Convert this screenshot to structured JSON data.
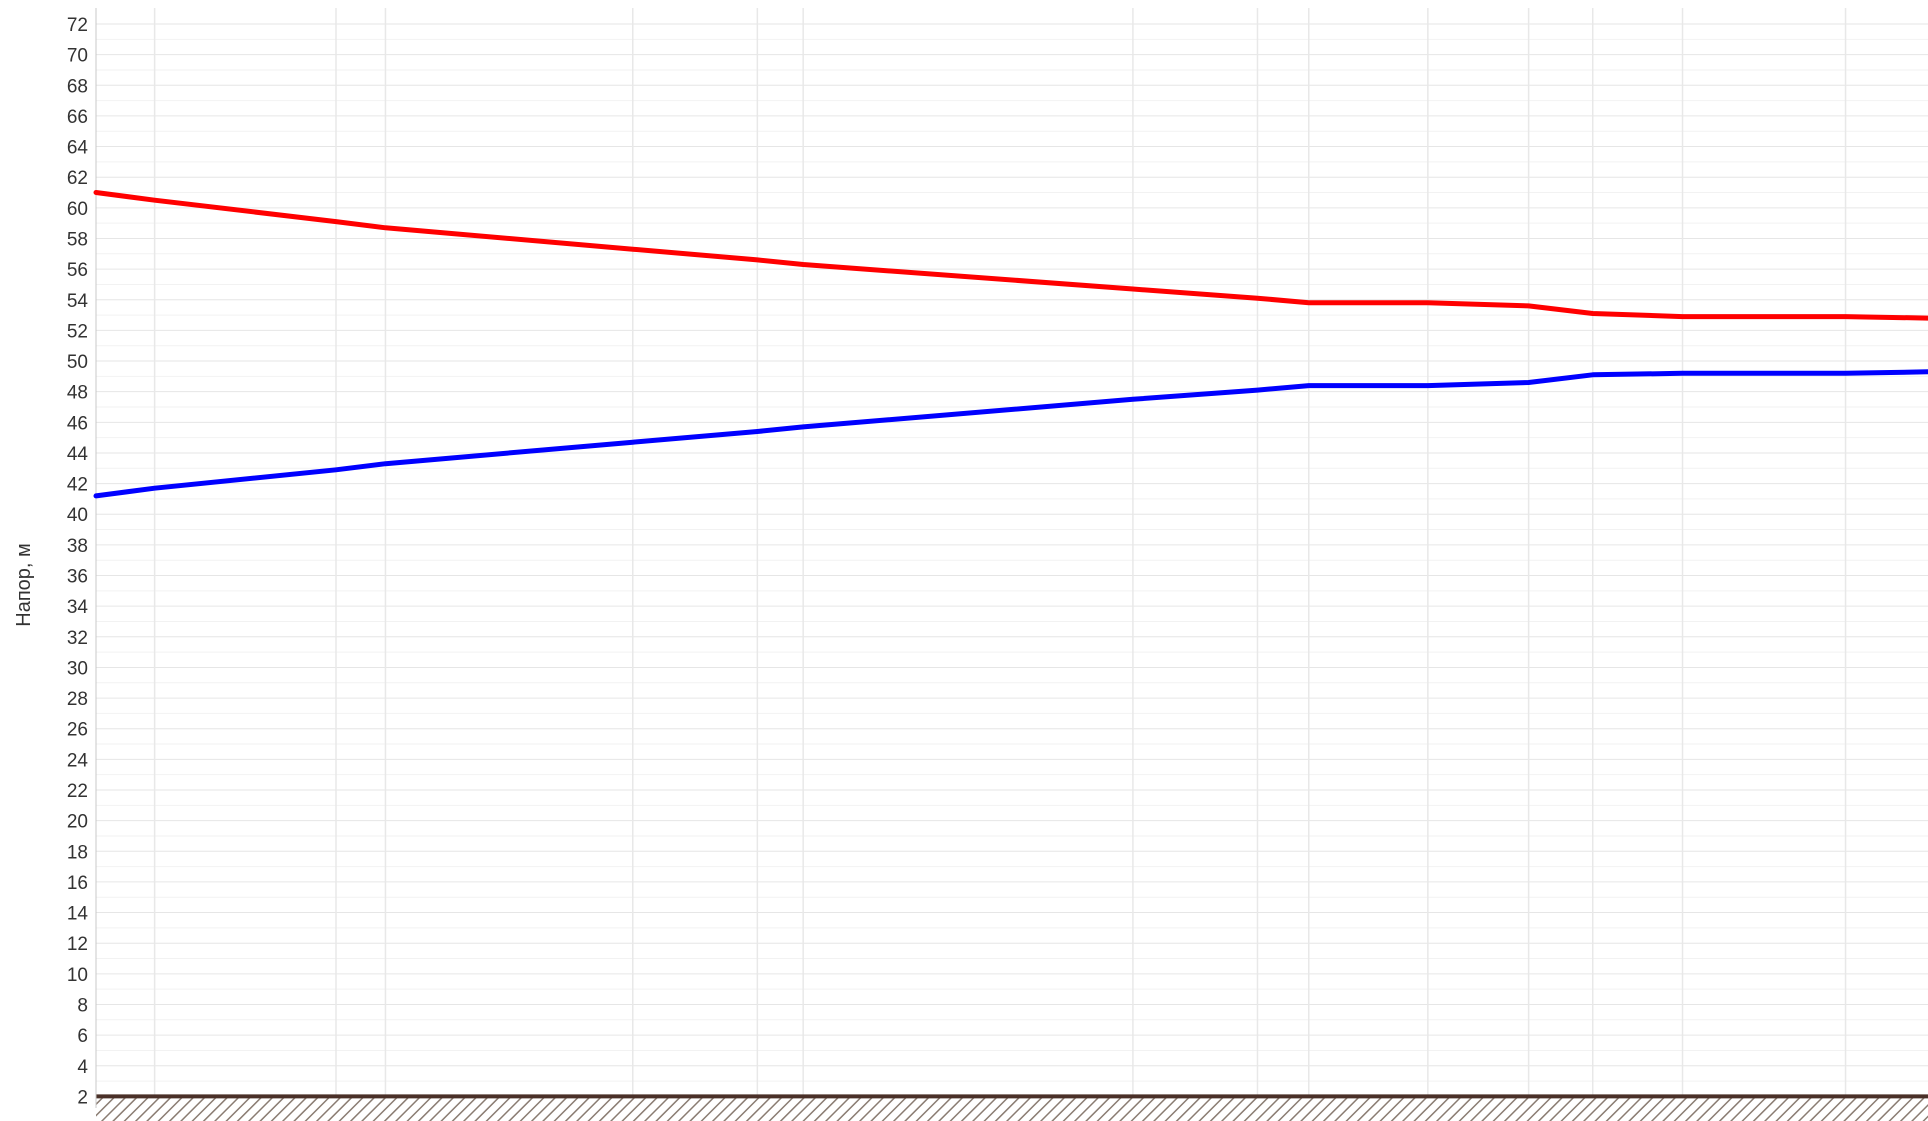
{
  "chart_data": {
    "type": "line",
    "title": "",
    "xlabel": "",
    "ylabel": "Напор, м",
    "ylim": [
      0,
      72
    ],
    "y_ticks": [
      2,
      4,
      6,
      8,
      10,
      12,
      14,
      16,
      18,
      20,
      22,
      24,
      26,
      28,
      30,
      32,
      34,
      36,
      38,
      40,
      42,
      44,
      46,
      48,
      50,
      52,
      54,
      56,
      58,
      60,
      62,
      64,
      66,
      68,
      70,
      72
    ],
    "xlim": [
      0,
      100
    ],
    "grid": true,
    "ground_level": 2,
    "series": [
      {
        "color": "#ff0000",
        "x": [
          0,
          3.2,
          13.1,
          15.8,
          29.3,
          36.1,
          38.6,
          56.6,
          63.4,
          66.2,
          72.7,
          78.2,
          81.7,
          86.6,
          95.5,
          100
        ],
        "y": [
          61.0,
          60.5,
          59.1,
          58.7,
          57.3,
          56.6,
          56.3,
          54.7,
          54.1,
          53.8,
          53.8,
          53.6,
          53.1,
          52.9,
          52.9,
          52.8
        ]
      },
      {
        "color": "#0000ff",
        "x": [
          0,
          3.2,
          13.1,
          15.8,
          29.3,
          36.1,
          38.6,
          56.6,
          63.4,
          66.2,
          72.7,
          78.2,
          81.7,
          86.6,
          95.5,
          100
        ],
        "y": [
          41.2,
          41.7,
          42.9,
          43.3,
          44.7,
          45.4,
          45.7,
          47.5,
          48.1,
          48.4,
          48.4,
          48.6,
          49.1,
          49.2,
          49.2,
          49.3
        ]
      }
    ]
  }
}
